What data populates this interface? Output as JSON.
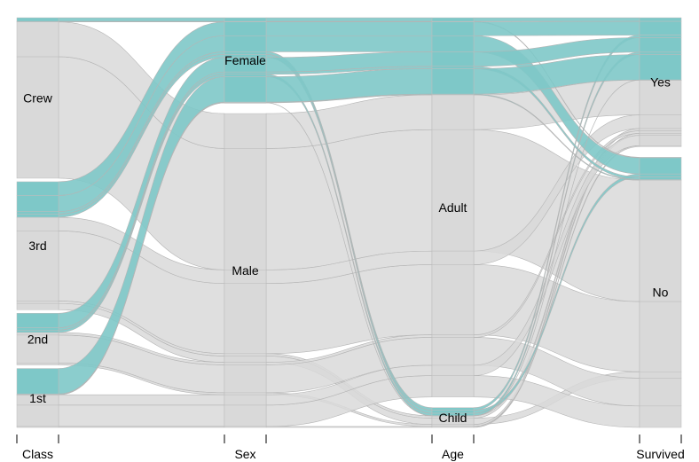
{
  "chart_data": {
    "type": "parallel-sets",
    "title": "",
    "axes": [
      {
        "name": "Class",
        "categories": [
          "Crew",
          "3rd",
          "2nd",
          "1st"
        ]
      },
      {
        "name": "Sex",
        "categories": [
          "Female",
          "Male"
        ]
      },
      {
        "name": "Age",
        "categories": [
          "Adult",
          "Child"
        ]
      },
      {
        "name": "Survived",
        "categories": [
          "Yes",
          "No"
        ]
      }
    ],
    "highlight": {
      "axis": "Sex",
      "category": "Female",
      "color": "#7ec8c8"
    },
    "base_color": "#d9d9d9",
    "flows": [
      {
        "Class": "Crew",
        "Sex": "Male",
        "Age": "Adult",
        "Survived": "No",
        "count": 670
      },
      {
        "Class": "Crew",
        "Sex": "Male",
        "Age": "Adult",
        "Survived": "Yes",
        "count": 192
      },
      {
        "Class": "Crew",
        "Sex": "Female",
        "Age": "Adult",
        "Survived": "No",
        "count": 3
      },
      {
        "Class": "Crew",
        "Sex": "Female",
        "Age": "Adult",
        "Survived": "Yes",
        "count": 20
      },
      {
        "Class": "3rd",
        "Sex": "Male",
        "Age": "Adult",
        "Survived": "No",
        "count": 387
      },
      {
        "Class": "3rd",
        "Sex": "Male",
        "Age": "Adult",
        "Survived": "Yes",
        "count": 75
      },
      {
        "Class": "3rd",
        "Sex": "Male",
        "Age": "Child",
        "Survived": "No",
        "count": 35
      },
      {
        "Class": "3rd",
        "Sex": "Male",
        "Age": "Child",
        "Survived": "Yes",
        "count": 13
      },
      {
        "Class": "3rd",
        "Sex": "Female",
        "Age": "Adult",
        "Survived": "No",
        "count": 89
      },
      {
        "Class": "3rd",
        "Sex": "Female",
        "Age": "Adult",
        "Survived": "Yes",
        "count": 76
      },
      {
        "Class": "3rd",
        "Sex": "Female",
        "Age": "Child",
        "Survived": "No",
        "count": 17
      },
      {
        "Class": "3rd",
        "Sex": "Female",
        "Age": "Child",
        "Survived": "Yes",
        "count": 14
      },
      {
        "Class": "2nd",
        "Sex": "Male",
        "Age": "Adult",
        "Survived": "No",
        "count": 154
      },
      {
        "Class": "2nd",
        "Sex": "Male",
        "Age": "Adult",
        "Survived": "Yes",
        "count": 14
      },
      {
        "Class": "2nd",
        "Sex": "Male",
        "Age": "Child",
        "Survived": "Yes",
        "count": 11
      },
      {
        "Class": "2nd",
        "Sex": "Female",
        "Age": "Adult",
        "Survived": "No",
        "count": 13
      },
      {
        "Class": "2nd",
        "Sex": "Female",
        "Age": "Adult",
        "Survived": "Yes",
        "count": 80
      },
      {
        "Class": "2nd",
        "Sex": "Female",
        "Age": "Child",
        "Survived": "Yes",
        "count": 13
      },
      {
        "Class": "1st",
        "Sex": "Male",
        "Age": "Adult",
        "Survived": "No",
        "count": 118
      },
      {
        "Class": "1st",
        "Sex": "Male",
        "Age": "Adult",
        "Survived": "Yes",
        "count": 57
      },
      {
        "Class": "1st",
        "Sex": "Male",
        "Age": "Child",
        "Survived": "Yes",
        "count": 5
      },
      {
        "Class": "1st",
        "Sex": "Female",
        "Age": "Adult",
        "Survived": "No",
        "count": 4
      },
      {
        "Class": "1st",
        "Sex": "Female",
        "Age": "Adult",
        "Survived": "Yes",
        "count": 140
      },
      {
        "Class": "1st",
        "Sex": "Female",
        "Age": "Child",
        "Survived": "Yes",
        "count": 1
      }
    ]
  }
}
